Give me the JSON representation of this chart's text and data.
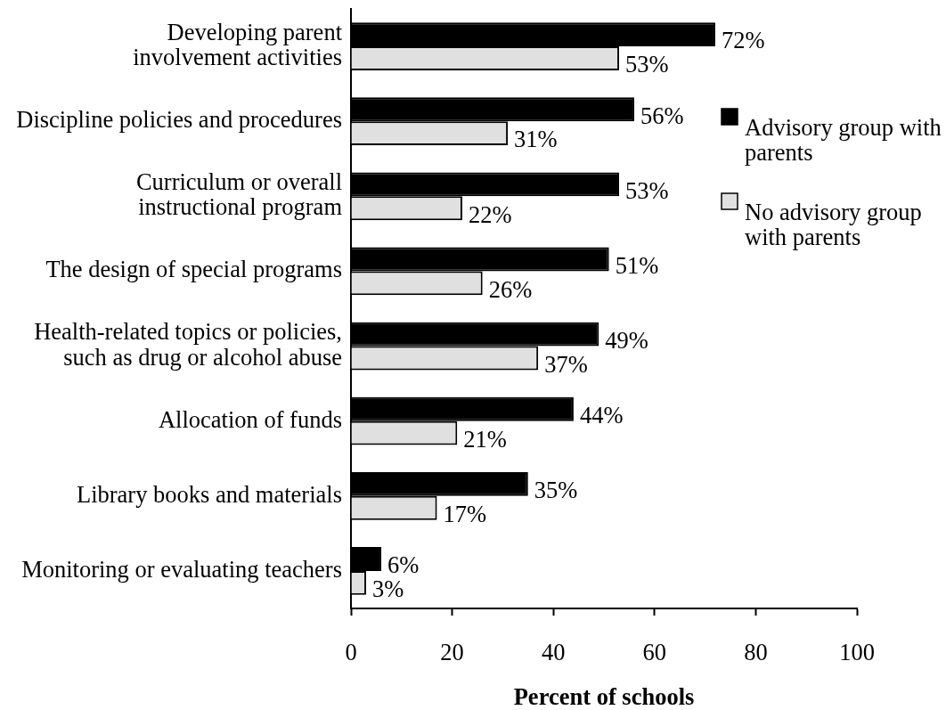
{
  "chart_data": {
    "type": "bar",
    "orientation": "horizontal",
    "categories": [
      "Developing parent involvement activities",
      "Discipline policies and procedures",
      "Curriculum or overall instructional program",
      "The design of special programs",
      "Health-related topics or policies, such as drug or alcohol abuse",
      "Allocation of funds",
      "Library books and materials",
      "Monitoring or evaluating teachers"
    ],
    "series": [
      {
        "name": "Advisory group with parents",
        "color": "#000000",
        "values": [
          72,
          56,
          53,
          51,
          49,
          44,
          35,
          6
        ],
        "value_labels": [
          "72%",
          "56%",
          "53%",
          "51%",
          "49%",
          "44%",
          "35%",
          "6%"
        ]
      },
      {
        "name": "No advisory group with parents",
        "color": "#e0e0e0",
        "values": [
          53,
          31,
          22,
          26,
          37,
          21,
          17,
          3
        ],
        "value_labels": [
          "53%",
          "31%",
          "22%",
          "26%",
          "37%",
          "21%",
          "17%",
          "3%"
        ]
      }
    ],
    "xlabel": "Percent of schools",
    "xlim": [
      0,
      100
    ],
    "xticks": [
      0,
      20,
      40,
      60,
      80,
      100
    ],
    "legend": "top right"
  }
}
